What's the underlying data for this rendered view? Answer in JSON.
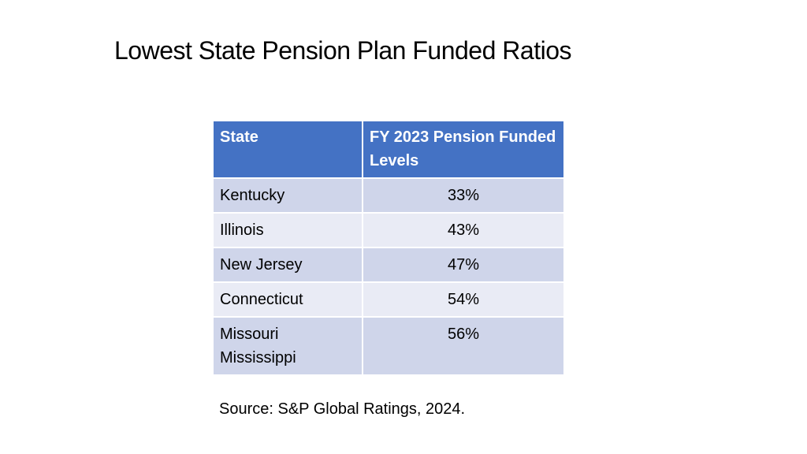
{
  "header": {
    "title": "Lowest State Pension Plan Funded Ratios"
  },
  "table": {
    "columns": [
      "State",
      "FY 2023 Pension Funded Levels"
    ],
    "rows": [
      [
        "Kentucky",
        "33%"
      ],
      [
        "Illinois",
        "43%"
      ],
      [
        "New Jersey",
        "47%"
      ],
      [
        "Connecticut",
        "54%"
      ],
      [
        [
          "Missouri",
          "Mississippi"
        ],
        "56%"
      ]
    ]
  },
  "footer": {
    "source": "Source: S&P Global Ratings, 2024."
  }
}
